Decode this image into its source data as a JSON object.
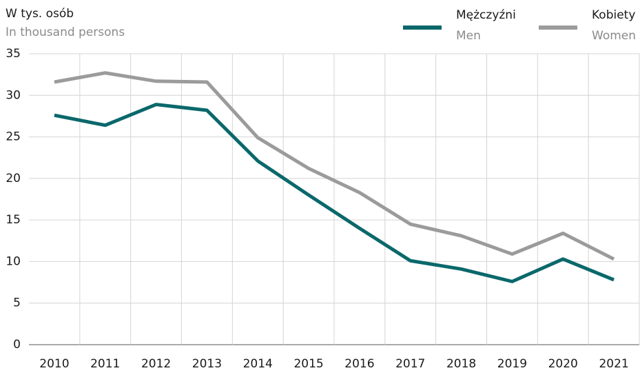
{
  "chart_data": {
    "type": "line",
    "ylabel": "W tys. osób",
    "ylabel_en": "In thousand persons",
    "categories": [
      "2010",
      "2011",
      "2012",
      "2013",
      "2014",
      "2015",
      "2016",
      "2017",
      "2018",
      "2019",
      "2020",
      "2021"
    ],
    "series": [
      {
        "name": "Mężczyźni",
        "name_en": "Men",
        "color": "#0a686b",
        "values": [
          27.6,
          26.4,
          28.9,
          28.2,
          22.1,
          18.0,
          14.0,
          10.1,
          9.1,
          7.6,
          10.3,
          7.8
        ]
      },
      {
        "name": "Kobiety",
        "name_en": "Women",
        "color": "#9b9b9b",
        "values": [
          31.6,
          32.7,
          31.7,
          31.6,
          24.9,
          21.2,
          18.3,
          14.5,
          13.1,
          10.9,
          13.4,
          10.3
        ]
      }
    ],
    "ylim": [
      0,
      35
    ],
    "yticks": [
      0,
      5,
      10,
      15,
      20,
      25,
      30,
      35
    ],
    "grid": true,
    "legend": "top-right"
  }
}
